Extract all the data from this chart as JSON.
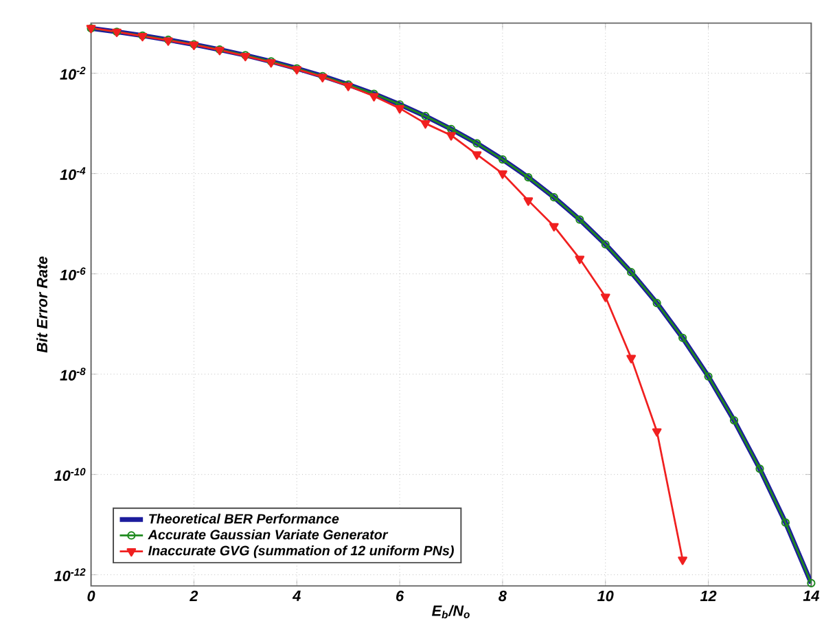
{
  "chart_data": {
    "type": "line",
    "xlabel": "E$_{b}$/N$_{o}$",
    "ylabel": "Bit Error Rate",
    "x": [
      0,
      0.5,
      1,
      1.5,
      2,
      2.5,
      3,
      3.5,
      4,
      4.5,
      5,
      5.5,
      6,
      6.5,
      7,
      7.5,
      8,
      8.5,
      9,
      9.5,
      10,
      10.5,
      11,
      11.5,
      12,
      12.5,
      13,
      13.5,
      14
    ],
    "series": [
      {
        "name": "Theoretical BER Performance",
        "color": "#1c1c9c",
        "marker": "none",
        "values": [
          0.0786,
          0.0671,
          0.0563,
          0.0464,
          0.0375,
          0.0296,
          0.0229,
          0.0172,
          0.0125,
          0.00878,
          0.00595,
          0.00388,
          0.00239,
          0.0014,
          0.000773,
          0.000401,
          0.000191,
          8.4e-05,
          3.36e-05,
          1.21e-05,
          3.87e-06,
          1.08e-06,
          2.61e-07,
          5.3e-08,
          9e-09,
          1.2e-09,
          1.3e-10,
          1.1e-11,
          6.8e-13
        ]
      },
      {
        "name": "Accurate Gaussian Variate Generator",
        "color": "#1e8a1e",
        "marker": "circle",
        "values": [
          0.0786,
          0.0671,
          0.0563,
          0.0464,
          0.0375,
          0.0296,
          0.0229,
          0.0172,
          0.0125,
          0.00878,
          0.00595,
          0.00388,
          0.00239,
          0.0014,
          0.000773,
          0.000401,
          0.000191,
          8.4e-05,
          3.36e-05,
          1.21e-05,
          3.87e-06,
          1.08e-06,
          2.61e-07,
          5.3e-08,
          9e-09,
          1.2e-09,
          1.3e-10,
          1.1e-11,
          6.8e-13
        ]
      },
      {
        "name": "Inaccurate GVG (summation of 12 uniform PNs)",
        "color": "#f02020",
        "marker": "triangle",
        "values": [
          0.08,
          0.067,
          0.055,
          0.045,
          0.037,
          0.029,
          0.022,
          0.0165,
          0.012,
          0.0084,
          0.0056,
          0.0035,
          0.002,
          0.001,
          0.00058,
          0.00024,
          0.0001,
          2.9e-05,
          8.9e-06,
          2e-06,
          3.5e-07,
          2.1e-08,
          7.2e-10,
          2e-12,
          null,
          null,
          null,
          null,
          null
        ]
      }
    ],
    "log": "y",
    "grid": true,
    "legend": "bottom left",
    "xlim": [
      0,
      14
    ],
    "xticks": [
      0,
      2,
      4,
      6,
      8,
      10,
      12,
      14
    ],
    "ylim": [
      6e-13,
      0.1
    ],
    "yticks": [
      {
        "value": 1e-12,
        "label": "10$^{-12}$"
      },
      {
        "value": 1e-10,
        "label": "10$^{-10}$"
      },
      {
        "value": 1e-08,
        "label": "10$^{-8}$"
      },
      {
        "value": 1e-06,
        "label": "10$^{-6}$"
      },
      {
        "value": 0.0001,
        "label": "10$^{-4}$"
      },
      {
        "value": 0.01,
        "label": "10$^{-2}$"
      }
    ]
  }
}
